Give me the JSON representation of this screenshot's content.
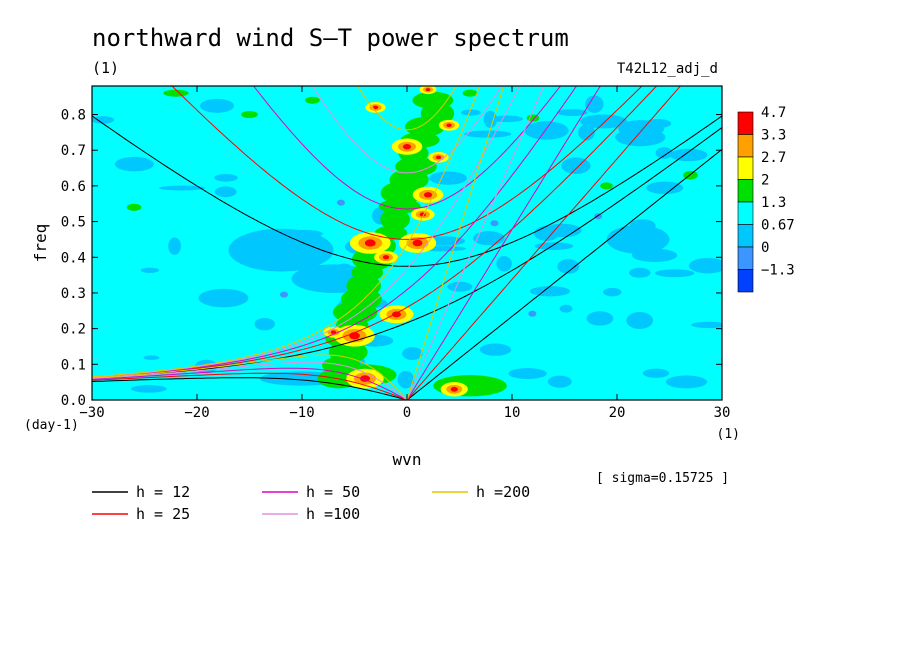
{
  "chart_data": {
    "type": "heatmap",
    "title": "northward wind S–T power spectrum",
    "subtitle_left": "(1)",
    "subtitle_right": "T42L12_adj_d",
    "xlabel": "wvn",
    "xunit": "(1)",
    "ylabel": "freq",
    "yunit": "(day-1)",
    "xlim": [
      -30,
      30
    ],
    "ylim": [
      0,
      0.88
    ],
    "x_ticks": [
      -30,
      -20,
      -10,
      0,
      10,
      20,
      30
    ],
    "x_tick_labels": [
      "−30",
      "−20",
      "−10",
      "0",
      "10",
      "20",
      "30"
    ],
    "y_ticks": [
      0.0,
      0.1,
      0.2,
      0.3,
      0.4,
      0.5,
      0.6,
      0.7,
      0.8
    ],
    "y_tick_labels": [
      "0.0",
      "0.1",
      "0.2",
      "0.3",
      "0.4",
      "0.5",
      "0.6",
      "0.7",
      "0.8"
    ],
    "colorbar": {
      "levels": [
        "4.7",
        "3.3",
        "2.7",
        "2",
        "1.3",
        "0.67",
        "0",
        "−1.3"
      ],
      "colors": [
        "#ff0000",
        "#ffa000",
        "#ffff00",
        "#00e000",
        "#00ffff",
        "#00c8ff",
        "#3c96ff",
        "#0040ff"
      ]
    },
    "sigma_note": "[ sigma=0.15725 ]",
    "dispersion_curves": [
      {
        "name": "h = 12",
        "h": 12,
        "color": "#000000"
      },
      {
        "name": "h = 25",
        "h": 25,
        "color": "#ff0000"
      },
      {
        "name": "h = 50",
        "h": 50,
        "color": "#e000c0"
      },
      {
        "name": "h =100",
        "h": 100,
        "color": "#e090e0"
      },
      {
        "name": "h =200",
        "h": 200,
        "color": "#e0c800"
      }
    ],
    "spectral_peaks": [
      {
        "wvn": -5,
        "freq": 0.18
      },
      {
        "wvn": -1,
        "freq": 0.24
      },
      {
        "wvn": 1,
        "freq": 0.44
      },
      {
        "wvn": 2,
        "freq": 0.575
      },
      {
        "wvn": 0,
        "freq": 0.71
      },
      {
        "wvn": -4,
        "freq": 0.06
      }
    ]
  }
}
